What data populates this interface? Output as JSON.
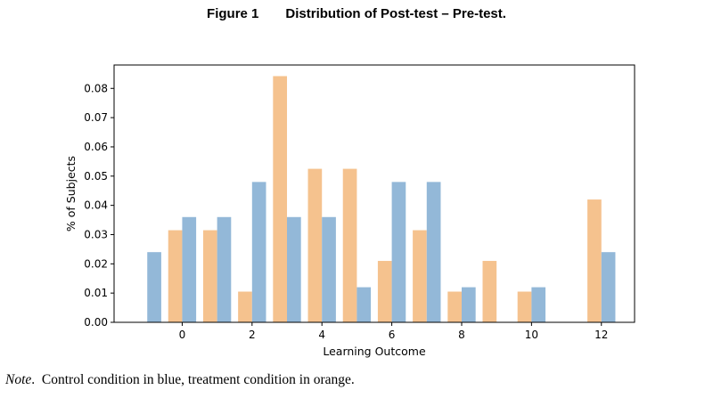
{
  "figure": {
    "label": "Figure 1",
    "caption": "Distribution of Post-test – Pre-test."
  },
  "note": {
    "label": "Note",
    "text": "Control condition in blue, treatment condition in orange."
  },
  "chart_data": {
    "type": "bar",
    "xlabel": "Learning Outcome",
    "ylabel": "% of Subjects",
    "xlim": [
      -1.95,
      12.95
    ],
    "ylim": [
      0,
      0.088
    ],
    "xticks": [
      0,
      2,
      4,
      6,
      8,
      10,
      12
    ],
    "yticks": [
      0.0,
      0.01,
      0.02,
      0.03,
      0.04,
      0.05,
      0.06,
      0.07,
      0.08
    ],
    "ytick_labels": [
      "0.00",
      "0.01",
      "0.02",
      "0.03",
      "0.04",
      "0.05",
      "0.06",
      "0.07",
      "0.08"
    ],
    "x": [
      -1,
      0,
      1,
      2,
      3,
      4,
      5,
      6,
      7,
      8,
      9,
      10,
      11,
      12
    ],
    "series": [
      {
        "color": "#f5c28e",
        "values": [
          0,
          0.0315,
          0.0315,
          0.0105,
          0.0842,
          0.0525,
          0.0525,
          0.021,
          0.0315,
          0.0105,
          0.021,
          0.0105,
          0,
          0.042
        ]
      },
      {
        "color": "#93b8d8",
        "values": [
          0.024,
          0.036,
          0.036,
          0.048,
          0.036,
          0.036,
          0.012,
          0.048,
          0.048,
          0.012,
          0,
          0.012,
          0,
          0.024
        ]
      }
    ]
  }
}
